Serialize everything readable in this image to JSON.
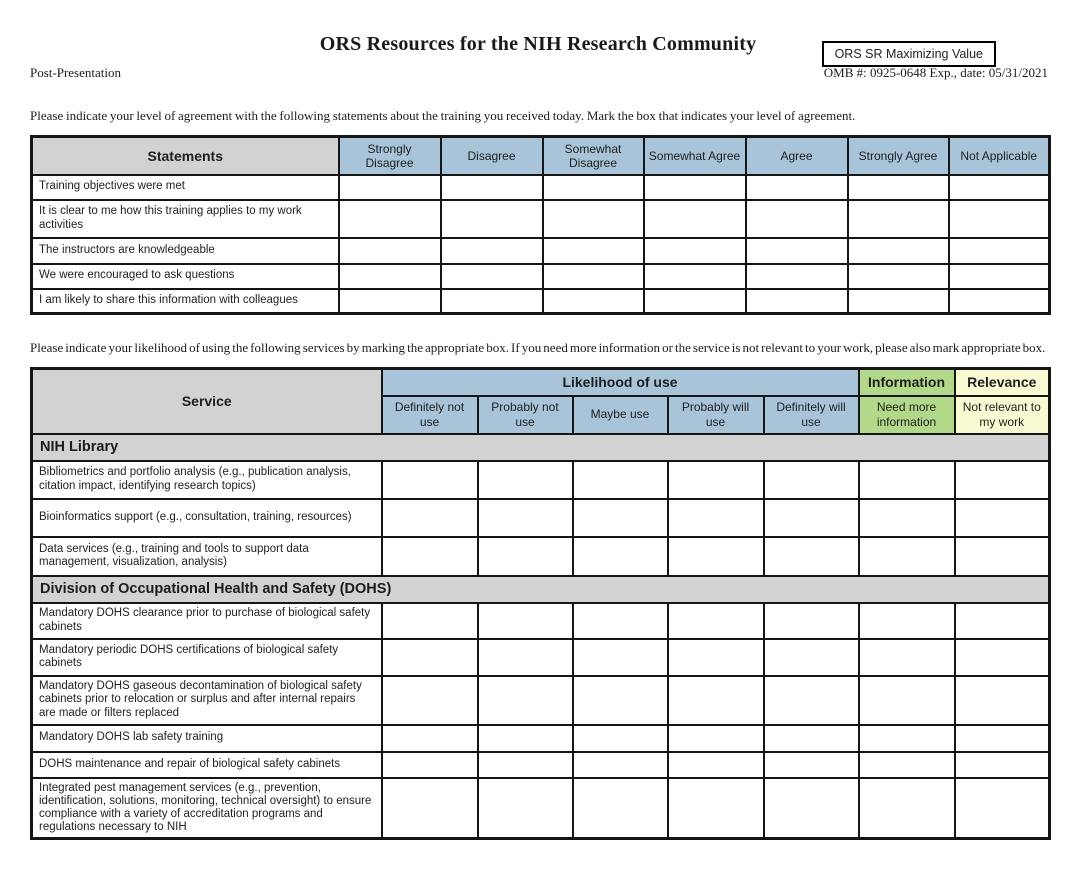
{
  "badge": "ORS SR Maximizing Value",
  "title": "ORS Resources for the NIH Research Community",
  "meta": {
    "left": "Post-Presentation",
    "right": "OMB #: 0925-0648 Exp., date: 05/31/2021"
  },
  "intro_agreement": "Please indicate your level of agreement with the following statements about the training you received today. Mark the box that indicates your level of agreement.",
  "intro_services": "Please indicate your likelihood of using the following services by marking the appropriate box. If you need more information or the service is not relevant to your work, please also mark appropriate box.",
  "agreement_table": {
    "statements_header": "Statements",
    "scale": [
      "Strongly Disagree",
      "Disagree",
      "Somewhat Disagree",
      "Somewhat Agree",
      "Agree",
      "Strongly Agree",
      "Not Applicable"
    ],
    "rows": [
      "Training objectives were met",
      "It is clear to me how this training applies to my work activities",
      "The instructors are knowledgeable",
      "We were encouraged to ask questions",
      "I am likely to share this information with colleagues"
    ]
  },
  "services_table": {
    "service_header": "Service",
    "groups": {
      "likelihood": "Likelihood of use",
      "information": "Information",
      "relevance": "Relevance"
    },
    "scale": [
      "Definitely not use",
      "Probably not use",
      "Maybe use",
      "Probably will use",
      "Definitely will use",
      "Need more information",
      "Not relevant to my work"
    ],
    "sections": [
      {
        "title": "NIH Library",
        "rows": [
          "Bibliometrics and portfolio analysis (e.g., publication analysis, citation impact, identifying research topics)",
          "Bioinformatics support (e.g., consultation, training, resources)",
          "Data services (e.g., training and tools to support data management, visualization, analysis)"
        ]
      },
      {
        "title": "Division of Occupational Health and Safety (DOHS)",
        "rows": [
          "Mandatory DOHS clearance prior to purchase of biological safety cabinets",
          "Mandatory periodic DOHS certifications of biological safety cabinets",
          "Mandatory DOHS gaseous decontamination of biological safety cabinets prior to relocation or surplus and after internal repairs are made or filters replaced",
          "Mandatory DOHS lab safety training",
          "DOHS maintenance and repair of biological safety cabinets",
          "Integrated pest management services (e.g., prevention, identification, solutions, monitoring, technical oversight) to ensure compliance with a variety of accreditation programs and regulations necessary to NIH"
        ]
      }
    ]
  },
  "colors": {
    "header_blue": "#a8c4d8",
    "header_gray": "#d2d2d2",
    "information_green": "#b2d88a",
    "relevance_yellow": "#fafad2",
    "border_black": "#151515"
  }
}
